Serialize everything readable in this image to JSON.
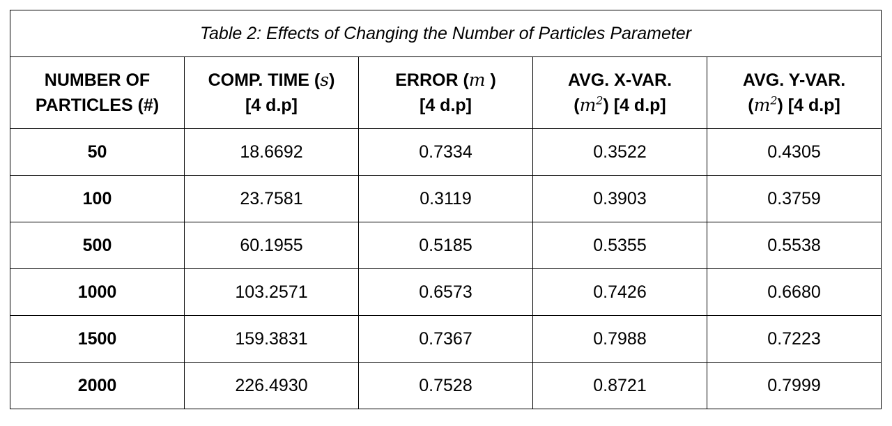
{
  "caption": "Table 2: Effects of Changing the Number of Particles Parameter",
  "headers": [
    {
      "line1": "NUMBER OF",
      "line2": "PARTICLES (#)"
    },
    {
      "line1_pre": "COMP. TIME (",
      "line1_unit": "s",
      "line1_post": ")",
      "line2": "[4 d.p]"
    },
    {
      "line1_pre": "ERROR (",
      "line1_unit": "m",
      "line1_post": " )",
      "line2": "[4 d.p]"
    },
    {
      "line1": "AVG. X-VAR.",
      "line2_pre": "(",
      "line2_unit": "m",
      "line2_exp": "2",
      "line2_post": ") [4 d.p]"
    },
    {
      "line1": "AVG. Y-VAR.",
      "line2_pre": "(",
      "line2_unit": "m",
      "line2_exp": "2",
      "line2_post": ") [4 d.p]"
    }
  ],
  "rows": [
    [
      "50",
      "18.6692",
      "0.7334",
      "0.3522",
      "0.4305"
    ],
    [
      "100",
      "23.7581",
      "0.3119",
      "0.3903",
      "0.3759"
    ],
    [
      "500",
      "60.1955",
      "0.5185",
      "0.5355",
      "0.5538"
    ],
    [
      "1000",
      "103.2571",
      "0.6573",
      "0.7426",
      "0.6680"
    ],
    [
      "1500",
      "159.3831",
      "0.7367",
      "0.7988",
      "0.7223"
    ],
    [
      "2000",
      "226.4930",
      "0.7528",
      "0.8721",
      "0.7999"
    ]
  ]
}
